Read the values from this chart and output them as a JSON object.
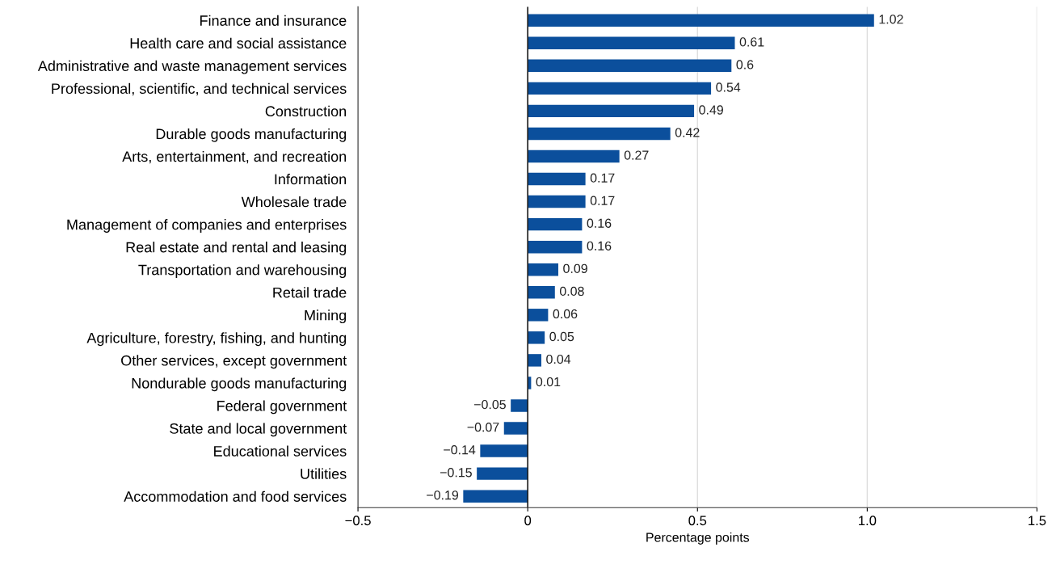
{
  "chart_data": {
    "type": "bar",
    "orientation": "horizontal",
    "xlabel": "Percentage points",
    "categories": [
      "Finance and insurance",
      "Health care and social assistance",
      "Administrative and waste management services",
      "Professional, scientific, and technical services",
      "Construction",
      "Durable goods manufacturing",
      "Arts, entertainment, and recreation",
      "Information",
      "Wholesale trade",
      "Management of companies and enterprises",
      "Real estate and rental and leasing",
      "Transportation and warehousing",
      "Retail trade",
      "Mining",
      "Agriculture, forestry, fishing, and hunting",
      "Other services, except government",
      "Nondurable goods manufacturing",
      "Federal government",
      "State and local government",
      "Educational services",
      "Utilities",
      "Accommodation and food services"
    ],
    "values": [
      1.02,
      0.61,
      0.6,
      0.54,
      0.49,
      0.42,
      0.27,
      0.17,
      0.17,
      0.16,
      0.16,
      0.09,
      0.08,
      0.06,
      0.05,
      0.04,
      0.01,
      -0.05,
      -0.07,
      -0.14,
      -0.15,
      -0.19
    ],
    "value_labels": [
      "1.02",
      "0.61",
      "0.6",
      "0.54",
      "0.49",
      "0.42",
      "0.27",
      "0.17",
      "0.17",
      "0.16",
      "0.16",
      "0.09",
      "0.08",
      "0.06",
      "0.05",
      "0.04",
      "0.01",
      "−0.05",
      "−0.07",
      "−0.14",
      "−0.15",
      "−0.19"
    ],
    "color": "#0b4f9c",
    "xlim": [
      -0.5,
      1.5
    ],
    "xticks": [
      {
        "value": -0.5,
        "label": "−0.5"
      },
      0,
      0.5,
      {
        "value": 1.0,
        "label": "1.0"
      },
      1.5
    ],
    "ref_lines": [
      {
        "axis": "x",
        "value": 0,
        "color": "#222222"
      }
    ],
    "grid": "x",
    "legend": false
  }
}
